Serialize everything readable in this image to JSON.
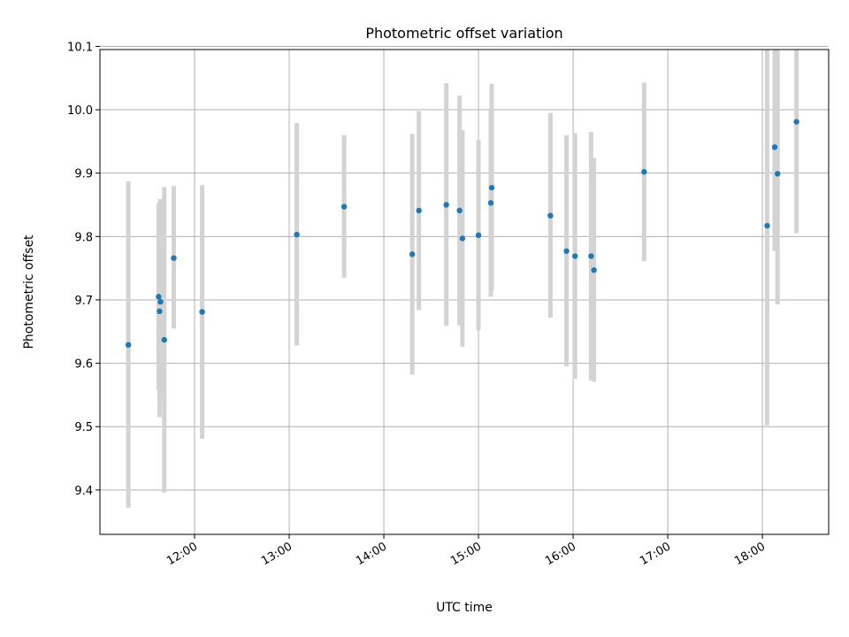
{
  "chart_data": {
    "type": "scatter",
    "title": "Photometric offset variation",
    "xlabel": "UTC time",
    "ylabel": "Photometric offset",
    "x_unit": "hours UTC",
    "xlim": [
      11.0,
      18.7
    ],
    "ylim": [
      9.33,
      10.095
    ],
    "xticks": [
      {
        "value": 12,
        "label": "12:00"
      },
      {
        "value": 13,
        "label": "13:00"
      },
      {
        "value": 14,
        "label": "14:00"
      },
      {
        "value": 15,
        "label": "15:00"
      },
      {
        "value": 16,
        "label": "16:00"
      },
      {
        "value": 17,
        "label": "17:00"
      },
      {
        "value": 18,
        "label": "18:00"
      }
    ],
    "yticks": [
      {
        "value": 9.4,
        "label": "9.4"
      },
      {
        "value": 9.5,
        "label": "9.5"
      },
      {
        "value": 9.6,
        "label": "9.6"
      },
      {
        "value": 9.7,
        "label": "9.7"
      },
      {
        "value": 9.8,
        "label": "9.8"
      },
      {
        "value": 9.9,
        "label": "9.9"
      },
      {
        "value": 10.0,
        "label": "10.0"
      },
      {
        "value": 10.1,
        "label": "10.1"
      }
    ],
    "grid": true,
    "marker_color": "#1f77b4",
    "errorbar_color": "#d3d3d3",
    "points": [
      {
        "x": 11.3,
        "y": 9.629,
        "low": 9.372,
        "high": 9.887
      },
      {
        "x": 11.62,
        "y": 9.705,
        "low": 9.558,
        "high": 9.852
      },
      {
        "x": 11.63,
        "y": 9.682,
        "low": 9.515,
        "high": 9.855
      },
      {
        "x": 11.64,
        "y": 9.697,
        "low": 9.54,
        "high": 9.859
      },
      {
        "x": 11.68,
        "y": 9.637,
        "low": 9.396,
        "high": 9.878
      },
      {
        "x": 11.78,
        "y": 9.766,
        "low": 9.655,
        "high": 9.88
      },
      {
        "x": 12.08,
        "y": 9.681,
        "low": 9.481,
        "high": 9.881
      },
      {
        "x": 13.08,
        "y": 9.803,
        "low": 9.628,
        "high": 9.979
      },
      {
        "x": 13.58,
        "y": 9.847,
        "low": 9.735,
        "high": 9.96
      },
      {
        "x": 14.3,
        "y": 9.772,
        "low": 9.582,
        "high": 9.962
      },
      {
        "x": 14.37,
        "y": 9.841,
        "low": 9.684,
        "high": 9.998
      },
      {
        "x": 14.66,
        "y": 9.85,
        "low": 9.659,
        "high": 10.042
      },
      {
        "x": 14.8,
        "y": 9.841,
        "low": 9.66,
        "high": 10.022
      },
      {
        "x": 14.83,
        "y": 9.797,
        "low": 9.626,
        "high": 9.968
      },
      {
        "x": 15.0,
        "y": 9.802,
        "low": 9.652,
        "high": 9.952
      },
      {
        "x": 15.13,
        "y": 9.853,
        "low": 9.705,
        "high": 10.002
      },
      {
        "x": 15.14,
        "y": 9.877,
        "low": 9.714,
        "high": 10.041
      },
      {
        "x": 15.76,
        "y": 9.833,
        "low": 9.672,
        "high": 9.995
      },
      {
        "x": 15.93,
        "y": 9.777,
        "low": 9.595,
        "high": 9.96
      },
      {
        "x": 16.02,
        "y": 9.769,
        "low": 9.575,
        "high": 9.963
      },
      {
        "x": 16.19,
        "y": 9.769,
        "low": 9.573,
        "high": 9.965
      },
      {
        "x": 16.22,
        "y": 9.747,
        "low": 9.571,
        "high": 9.924
      },
      {
        "x": 16.75,
        "y": 9.902,
        "low": 9.761,
        "high": 10.043
      },
      {
        "x": 18.05,
        "y": 9.817,
        "low": 9.502,
        "high": 10.132
      },
      {
        "x": 18.13,
        "y": 9.941,
        "low": 9.777,
        "high": 10.105
      },
      {
        "x": 18.16,
        "y": 9.899,
        "low": 9.693,
        "high": 10.105
      },
      {
        "x": 18.36,
        "y": 9.981,
        "low": 9.805,
        "high": 10.157
      }
    ]
  }
}
